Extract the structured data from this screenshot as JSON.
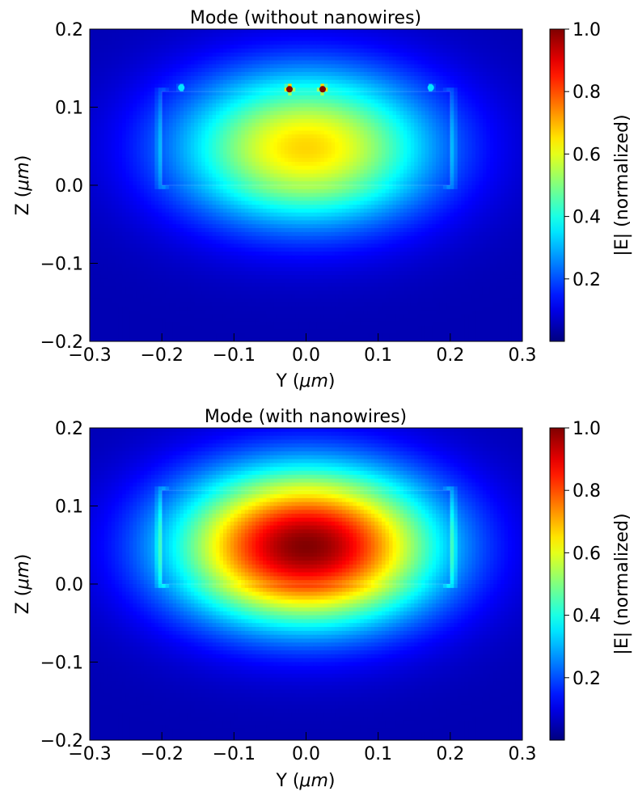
{
  "figure": {
    "colormap": "jet",
    "colors": {
      "axis": "#000000",
      "background": "#ffffff",
      "field_min": "#00008f",
      "field_max": "#800000"
    }
  },
  "chart_data": [
    {
      "type": "heatmap",
      "title": "Mode (without nanowires)",
      "xlabel_main": "Y (",
      "xlabel_unit": "μm",
      "xlabel_close": ")",
      "ylabel_main": "Z (",
      "ylabel_unit": "μm",
      "ylabel_close": ")",
      "xlim": [
        -0.3,
        0.3
      ],
      "ylim": [
        -0.2,
        0.2
      ],
      "xticks": [
        -0.3,
        -0.2,
        -0.1,
        0.0,
        0.1,
        0.2,
        0.3
      ],
      "xtick_labels": [
        "−0.3",
        "−0.2",
        "−0.1",
        "0.0",
        "0.1",
        "0.2",
        "0.3"
      ],
      "yticks": [
        -0.2,
        -0.1,
        0.0,
        0.1,
        0.2
      ],
      "ytick_labels": [
        "−0.2",
        "−0.1",
        "0.0",
        "0.1",
        "0.2"
      ],
      "colorbar": {
        "label": "|E| (normalized)",
        "range": [
          0.0,
          1.0
        ],
        "ticks": [
          0.2,
          0.4,
          0.6,
          0.8,
          1.0
        ],
        "tick_labels": [
          "0.2",
          "0.4",
          "0.6",
          "0.8",
          "1.0"
        ]
      },
      "field": {
        "peak": 0.65,
        "center_y": 0.0,
        "center_z": 0.048,
        "sigma_y": 0.125,
        "sigma_z": 0.068,
        "background_level": 0.05,
        "waveguide": {
          "y_range": [
            -0.2,
            0.2
          ],
          "z_range": [
            0.0,
            0.12
          ]
        },
        "hotspots": [
          {
            "y": -0.023,
            "z": 0.123,
            "value": 1.0
          },
          {
            "y": 0.023,
            "z": 0.123,
            "value": 1.0
          },
          {
            "y": -0.173,
            "z": 0.125,
            "value": 0.35
          },
          {
            "y": 0.173,
            "z": 0.125,
            "value": 0.35
          }
        ]
      }
    },
    {
      "type": "heatmap",
      "title": "Mode (with nanowires)",
      "xlabel_main": "Y (",
      "xlabel_unit": "μm",
      "xlabel_close": ")",
      "ylabel_main": "Z (",
      "ylabel_unit": "μm",
      "ylabel_close": ")",
      "xlim": [
        -0.3,
        0.3
      ],
      "ylim": [
        -0.2,
        0.2
      ],
      "xticks": [
        -0.3,
        -0.2,
        -0.1,
        0.0,
        0.1,
        0.2,
        0.3
      ],
      "xtick_labels": [
        "−0.3",
        "−0.2",
        "−0.1",
        "0.0",
        "0.1",
        "0.2",
        "0.3"
      ],
      "yticks": [
        -0.2,
        -0.1,
        0.0,
        0.1,
        0.2
      ],
      "ytick_labels": [
        "−0.2",
        "−0.1",
        "0.0",
        "0.1",
        "0.2"
      ],
      "colorbar": {
        "label": "|E| (normalized)",
        "range": [
          0.0,
          1.0
        ],
        "ticks": [
          0.2,
          0.4,
          0.6,
          0.8,
          1.0
        ],
        "tick_labels": [
          "0.2",
          "0.4",
          "0.6",
          "0.8",
          "1.0"
        ]
      },
      "field": {
        "peak": 1.0,
        "center_y": 0.0,
        "center_z": 0.048,
        "sigma_y": 0.125,
        "sigma_z": 0.068,
        "background_level": 0.05,
        "waveguide": {
          "y_range": [
            -0.2,
            0.2
          ],
          "z_range": [
            0.0,
            0.12
          ]
        },
        "hotspots": []
      }
    }
  ]
}
